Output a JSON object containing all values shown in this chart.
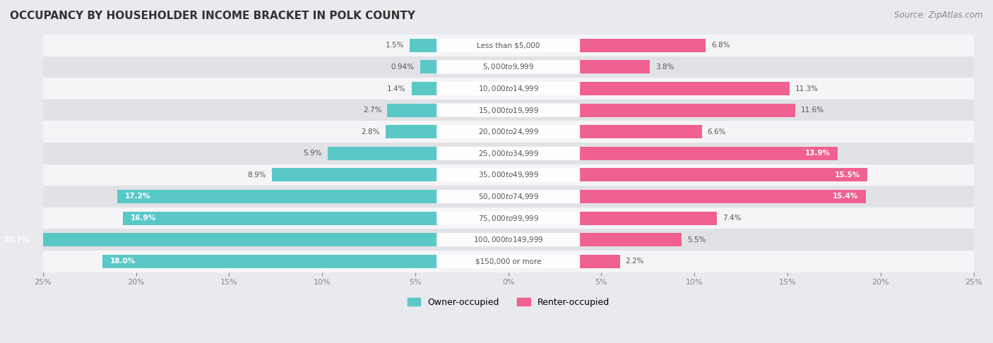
{
  "title": "OCCUPANCY BY HOUSEHOLDER INCOME BRACKET IN POLK COUNTY",
  "source": "Source: ZipAtlas.com",
  "categories": [
    "Less than $5,000",
    "$5,000 to $9,999",
    "$10,000 to $14,999",
    "$15,000 to $19,999",
    "$20,000 to $24,999",
    "$25,000 to $34,999",
    "$35,000 to $49,999",
    "$50,000 to $74,999",
    "$75,000 to $99,999",
    "$100,000 to $149,999",
    "$150,000 or more"
  ],
  "owner_values": [
    1.5,
    0.94,
    1.4,
    2.7,
    2.8,
    5.9,
    8.9,
    17.2,
    16.9,
    23.7,
    18.0
  ],
  "renter_values": [
    6.8,
    3.8,
    11.3,
    11.6,
    6.6,
    13.9,
    15.5,
    15.4,
    7.4,
    5.5,
    2.2
  ],
  "owner_color": "#5BC8C8",
  "renter_color": "#F06090",
  "owner_label": "Owner-occupied",
  "renter_label": "Renter-occupied",
  "xlim": 25.0,
  "bar_height": 0.62,
  "label_band_half": 3.8,
  "bg_color": "#e8eaed",
  "row_bg_light": "#f5f5f7",
  "row_bg_dark": "#e0e2e6",
  "title_fontsize": 11,
  "label_fontsize": 7.5,
  "source_fontsize": 8.5,
  "tick_fontsize": 8
}
